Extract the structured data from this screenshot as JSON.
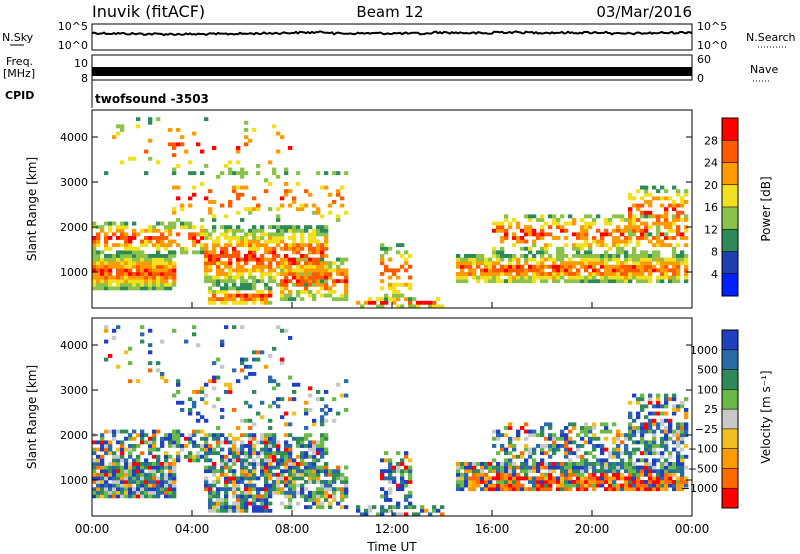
{
  "header": {
    "station": "Inuvik (fitACF)",
    "beam": "Beam 12",
    "date": "03/Mar/2016"
  },
  "strips": {
    "nsky_label": "N.Sky",
    "nsearch_label": "N.Search",
    "nsky_ticks": [
      "10^5",
      "10^0"
    ],
    "nsearch_ticks": [
      "10^5",
      "10^0"
    ],
    "freq_label_1": "Freq.",
    "freq_label_2": "[MHz]",
    "freq_ticks": [
      "10",
      "8"
    ],
    "nave_label": "Nave",
    "nave_ticks": [
      "60",
      "0"
    ],
    "cpid_label": "CPID",
    "cpid_value": "twofsound -3503"
  },
  "colors": {
    "power": [
      "#0020ff",
      "#2040b0",
      "#2e8a57",
      "#8bc34a",
      "#f0e020",
      "#ff9a00",
      "#ff5a00",
      "#ff0000"
    ],
    "velocity_pos": [
      "#2040c0",
      "#2a6aa8",
      "#2f8a5a",
      "#6ab848"
    ],
    "velocity_gs": "#c8c8c8",
    "velocity_neg": [
      "#f0c020",
      "#ff9a00",
      "#ff6a00",
      "#ff0000"
    ]
  },
  "chart_data": [
    {
      "type": "heatmap",
      "name": "power",
      "ylabel": "Slant Range [km]",
      "xlabel": "",
      "yticks": [
        1000,
        2000,
        3000,
        4000
      ],
      "ylim": [
        200,
        4600
      ],
      "colorbar_label": "Power [dB]",
      "colorbar_ticks": [
        "4",
        "8",
        "12",
        "16",
        "20",
        "24",
        "28"
      ],
      "colorbar_range": [
        0,
        32
      ]
    },
    {
      "type": "heatmap",
      "name": "velocity",
      "ylabel": "Slant Range [km]",
      "xlabel": "Time UT",
      "xticks": [
        "00:00",
        "04:00",
        "08:00",
        "12:00",
        "16:00",
        "20:00",
        "00:00"
      ],
      "yticks": [
        1000,
        2000,
        3000,
        4000
      ],
      "ylim": [
        200,
        4600
      ],
      "colorbar_label": "Velocity [m s⁻¹]",
      "colorbar_ticks": [
        "1000",
        "500",
        "100",
        "25",
        "−25",
        "−100",
        "−500",
        "−1000"
      ]
    }
  ]
}
